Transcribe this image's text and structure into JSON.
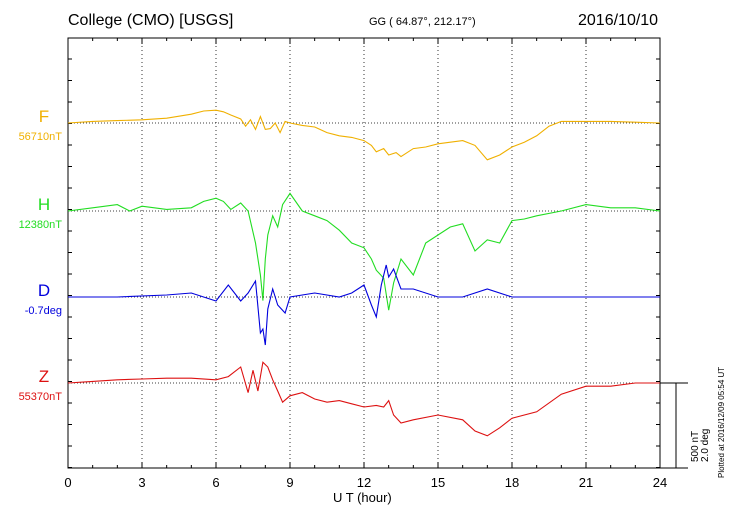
{
  "header": {
    "station": "College (CMO)  [USGS]",
    "coordinates": "GG ( 64.87°, 212.17°)",
    "date": "2016/10/10"
  },
  "scale": {
    "nt_label": "500 nT",
    "deg_label": "2.0 deg"
  },
  "plotted_at": "Plotted at 2016/12/09 05:54 UT",
  "colors": {
    "F": "#f0b000",
    "H": "#22dd22",
    "D": "#0000dd",
    "Z": "#dd1111"
  },
  "chart_data": {
    "type": "line",
    "title": "College (CMO)  [USGS]",
    "xlabel": "U T (hour)",
    "ylabel": "",
    "xlim": [
      0,
      24
    ],
    "x_ticks": [
      "0",
      "3",
      "6",
      "9",
      "12",
      "15",
      "18",
      "21",
      "24"
    ],
    "grid": true,
    "series": [
      {
        "name": "F",
        "baseline_label": "56710nT",
        "unit": "nT",
        "x": [
          0,
          1,
          2,
          3,
          4,
          5,
          5.5,
          6,
          6.3,
          6.6,
          7,
          7.2,
          7.4,
          7.6,
          7.8,
          8.0,
          8.2,
          8.4,
          8.6,
          8.8,
          9.0,
          9.5,
          10,
          10.5,
          11,
          11.5,
          12,
          12.3,
          12.5,
          12.8,
          13.0,
          13.3,
          13.5,
          14,
          14.5,
          15,
          15.5,
          16,
          16.5,
          17,
          17.5,
          18,
          18.5,
          19,
          19.5,
          20,
          21,
          22,
          23,
          24
        ],
        "values": [
          0,
          10,
          15,
          20,
          30,
          55,
          75,
          80,
          70,
          50,
          25,
          -20,
          20,
          -40,
          40,
          -40,
          -35,
          0,
          -60,
          10,
          0,
          -15,
          -25,
          -60,
          -80,
          -90,
          -110,
          -140,
          -180,
          -160,
          -200,
          -185,
          -210,
          -160,
          -150,
          -130,
          -120,
          -110,
          -140,
          -230,
          -200,
          -150,
          -120,
          -80,
          -20,
          10,
          10,
          10,
          5,
          0
        ]
      },
      {
        "name": "H",
        "baseline_label": "12380nT",
        "unit": "nT",
        "x": [
          0,
          1,
          2,
          2.5,
          3,
          4,
          5,
          5.5,
          6,
          6.3,
          6.6,
          7,
          7.3,
          7.6,
          7.8,
          7.9,
          8.0,
          8.1,
          8.3,
          8.5,
          8.7,
          9,
          9.5,
          10,
          10.5,
          11,
          11.5,
          12,
          12.3,
          12.5,
          12.8,
          13.0,
          13.2,
          13.5,
          14,
          14.5,
          15,
          15.5,
          16,
          16.5,
          17,
          17.5,
          18,
          18.5,
          19,
          20,
          21,
          22,
          23,
          24
        ],
        "values": [
          0,
          20,
          40,
          0,
          30,
          10,
          20,
          60,
          80,
          60,
          10,
          50,
          0,
          -200,
          -400,
          -560,
          -300,
          -150,
          -30,
          -100,
          40,
          110,
          0,
          -30,
          -60,
          -120,
          -200,
          -230,
          -300,
          -370,
          -420,
          -620,
          -450,
          -300,
          -400,
          -200,
          -150,
          -100,
          -80,
          -250,
          -180,
          -200,
          -60,
          -50,
          -30,
          0,
          40,
          20,
          20,
          0
        ]
      },
      {
        "name": "D",
        "baseline_label": "-0.7deg",
        "unit": "deg",
        "x": [
          0,
          2,
          4,
          5,
          6,
          6.5,
          7,
          7.3,
          7.6,
          7.8,
          7.9,
          8.0,
          8.1,
          8.3,
          8.5,
          8.8,
          9,
          10,
          11,
          11.5,
          12,
          12.3,
          12.5,
          12.7,
          12.9,
          13.0,
          13.2,
          13.5,
          14,
          15,
          16,
          17,
          18,
          19,
          20,
          21,
          22,
          23,
          24
        ],
        "values": [
          0,
          0,
          0.05,
          0.1,
          -0.1,
          0.3,
          -0.1,
          0.1,
          0.4,
          -0.9,
          -0.8,
          -1.2,
          -0.3,
          0.2,
          -0.2,
          -0.4,
          0,
          0.1,
          0,
          0.1,
          0.3,
          -0.2,
          -0.5,
          0.3,
          0.8,
          0.5,
          0.7,
          0.2,
          0.2,
          0,
          0,
          0.2,
          0,
          0,
          0,
          0,
          0,
          0,
          0
        ]
      },
      {
        "name": "Z",
        "baseline_label": "55370nT",
        "unit": "nT",
        "x": [
          0,
          1,
          2,
          3,
          4,
          5,
          6,
          6.5,
          7,
          7.3,
          7.5,
          7.7,
          7.9,
          8.1,
          8.3,
          8.5,
          8.7,
          9,
          9.5,
          10,
          10.5,
          11,
          11.5,
          12,
          12.5,
          12.8,
          13.0,
          13.2,
          13.5,
          14,
          15,
          16,
          16.5,
          17,
          17.5,
          18,
          19,
          20,
          21,
          22,
          23,
          24
        ],
        "values": [
          0,
          10,
          20,
          25,
          30,
          30,
          20,
          40,
          100,
          -60,
          80,
          -50,
          130,
          100,
          20,
          -50,
          -120,
          -80,
          -60,
          -100,
          -120,
          -110,
          -130,
          -150,
          -140,
          -150,
          -110,
          -200,
          -250,
          -230,
          -200,
          -230,
          -300,
          -330,
          -280,
          -220,
          -180,
          -70,
          -20,
          -20,
          0,
          0
        ]
      }
    ]
  }
}
